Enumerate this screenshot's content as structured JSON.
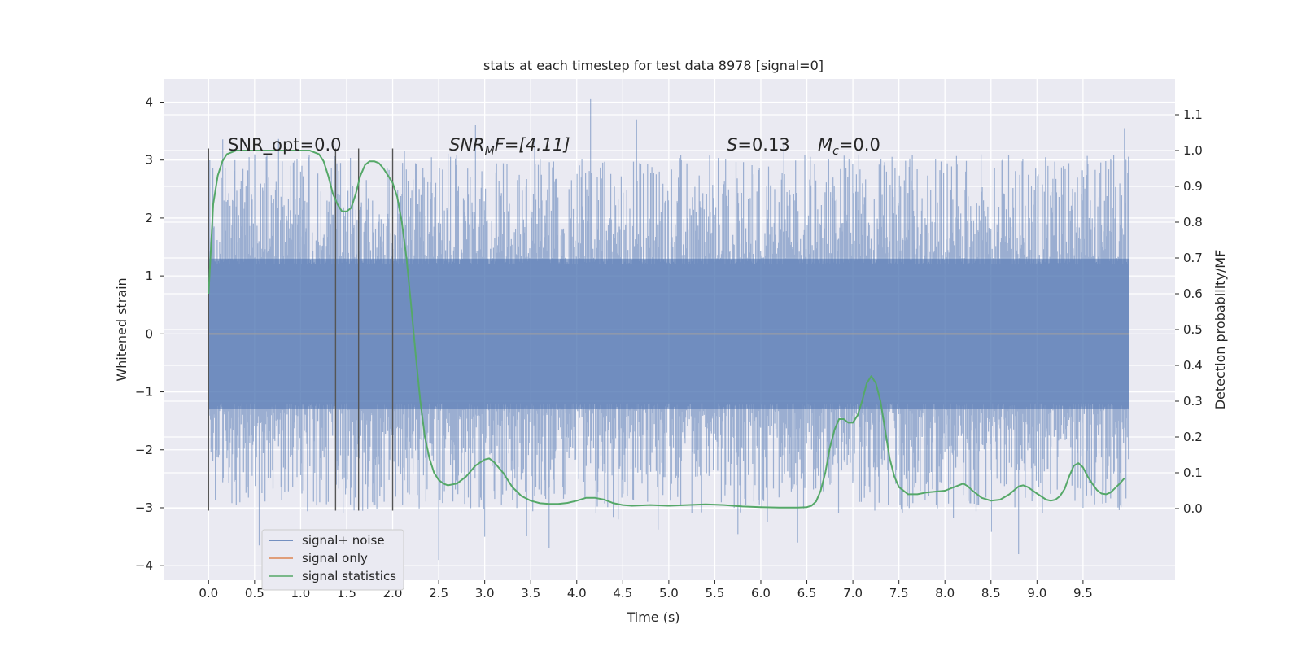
{
  "chart_data": {
    "type": "line",
    "title": "stats at each timestep for test data 8978 [signal=0]",
    "xlabel": "Time (s)",
    "ylabel": "Whitened strain",
    "ylabel_right": "Detection probability/MF",
    "xlim": [
      -0.48,
      10.5
    ],
    "ylim": [
      -4.25,
      4.4
    ],
    "ylim_right": [
      -0.2,
      1.2
    ],
    "x_ticks": [
      "0.0",
      "0.5",
      "1.0",
      "1.5",
      "2.0",
      "2.5",
      "3.0",
      "3.5",
      "4.0",
      "4.5",
      "5.0",
      "5.5",
      "6.0",
      "6.5",
      "7.0",
      "7.5",
      "8.0",
      "8.5",
      "9.0",
      "9.5"
    ],
    "y_ticks": [
      "4",
      "3",
      "2",
      "1",
      "0",
      "−1",
      "−2",
      "−3",
      "−4"
    ],
    "y_ticks_right": [
      "1.1",
      "1.0",
      "0.9",
      "0.8",
      "0.7",
      "0.6",
      "0.5",
      "0.4",
      "0.3",
      "0.2",
      "0.1",
      "0.0"
    ],
    "grid": true,
    "legend_position": "lower-left",
    "annotations": {
      "snr_opt": "SNR_opt=0.0",
      "snr_mf_italic": "SNR",
      "snr_mf_sub": "M",
      "snr_mf_rest": "F=[4.11]",
      "s_italic": "S",
      "s_rest": "=0.13",
      "mc_italic": "M",
      "mc_sub": "c",
      "mc_rest": "=0.0"
    },
    "vertical_markers": [
      0.0,
      1.38,
      1.63,
      2.0
    ],
    "noise_envelope": {
      "x_range": [
        0.0,
        10.0
      ],
      "dense_band": [
        -1.3,
        1.3
      ],
      "peaks_up": [
        [
          0.5,
          3.1
        ],
        [
          1.0,
          2.8
        ],
        [
          2.9,
          3.6
        ],
        [
          4.15,
          4.05
        ],
        [
          4.65,
          3.7
        ],
        [
          6.25,
          3.3
        ],
        [
          9.95,
          3.55
        ]
      ],
      "peaks_down": [
        [
          0.55,
          -3.65
        ],
        [
          2.5,
          -3.9
        ],
        [
          3.0,
          -3.5
        ],
        [
          3.7,
          -3.7
        ],
        [
          4.45,
          -3.2
        ],
        [
          6.4,
          -3.6
        ],
        [
          8.8,
          -3.8
        ],
        [
          9.5,
          -3.0
        ]
      ]
    },
    "series": [
      {
        "name": "signal+ noise",
        "color": "#4c72b0",
        "axis": "left",
        "style": "dense-noise"
      },
      {
        "name": "signal only",
        "color": "#dd8452",
        "axis": "left",
        "x": [
          0,
          10
        ],
        "y": [
          0,
          0
        ]
      },
      {
        "name": "signal statistics",
        "color": "#55a868",
        "axis": "right",
        "x": [
          0.0,
          0.05,
          0.1,
          0.15,
          0.2,
          0.3,
          0.5,
          0.7,
          0.9,
          1.0,
          1.1,
          1.2,
          1.25,
          1.3,
          1.35,
          1.4,
          1.45,
          1.5,
          1.55,
          1.6,
          1.65,
          1.7,
          1.75,
          1.8,
          1.85,
          1.9,
          1.95,
          2.0,
          2.05,
          2.1,
          2.15,
          2.2,
          2.25,
          2.3,
          2.35,
          2.4,
          2.45,
          2.5,
          2.55,
          2.6,
          2.7,
          2.8,
          2.9,
          3.0,
          3.05,
          3.1,
          3.2,
          3.3,
          3.4,
          3.5,
          3.6,
          3.7,
          3.8,
          3.9,
          4.0,
          4.1,
          4.2,
          4.3,
          4.4,
          4.5,
          4.6,
          4.8,
          5.0,
          5.2,
          5.4,
          5.6,
          5.8,
          6.0,
          6.2,
          6.4,
          6.5,
          6.55,
          6.6,
          6.65,
          6.7,
          6.75,
          6.8,
          6.85,
          6.9,
          6.95,
          7.0,
          7.05,
          7.1,
          7.15,
          7.2,
          7.25,
          7.3,
          7.35,
          7.4,
          7.45,
          7.5,
          7.6,
          7.7,
          7.8,
          8.0,
          8.1,
          8.2,
          8.25,
          8.3,
          8.4,
          8.5,
          8.6,
          8.7,
          8.8,
          8.85,
          8.9,
          9.0,
          9.1,
          9.15,
          9.2,
          9.25,
          9.3,
          9.35,
          9.4,
          9.45,
          9.5,
          9.55,
          9.6,
          9.65,
          9.7,
          9.75,
          9.8,
          9.9,
          9.95
        ],
        "y": [
          0.6,
          0.85,
          0.93,
          0.97,
          0.99,
          1.0,
          1.0,
          1.0,
          1.0,
          1.0,
          1.0,
          0.99,
          0.97,
          0.93,
          0.88,
          0.85,
          0.83,
          0.83,
          0.84,
          0.88,
          0.93,
          0.96,
          0.97,
          0.97,
          0.965,
          0.95,
          0.93,
          0.91,
          0.87,
          0.8,
          0.7,
          0.57,
          0.43,
          0.3,
          0.2,
          0.14,
          0.1,
          0.08,
          0.07,
          0.065,
          0.07,
          0.09,
          0.12,
          0.137,
          0.14,
          0.13,
          0.1,
          0.06,
          0.035,
          0.022,
          0.015,
          0.013,
          0.013,
          0.016,
          0.022,
          0.03,
          0.03,
          0.025,
          0.015,
          0.01,
          0.008,
          0.01,
          0.008,
          0.01,
          0.012,
          0.01,
          0.006,
          0.004,
          0.003,
          0.003,
          0.004,
          0.008,
          0.02,
          0.05,
          0.1,
          0.17,
          0.22,
          0.25,
          0.25,
          0.24,
          0.24,
          0.26,
          0.3,
          0.35,
          0.37,
          0.35,
          0.3,
          0.22,
          0.14,
          0.09,
          0.06,
          0.04,
          0.04,
          0.045,
          0.05,
          0.06,
          0.07,
          0.062,
          0.05,
          0.03,
          0.022,
          0.025,
          0.04,
          0.062,
          0.065,
          0.06,
          0.042,
          0.025,
          0.022,
          0.025,
          0.035,
          0.055,
          0.09,
          0.12,
          0.127,
          0.115,
          0.09,
          0.07,
          0.052,
          0.042,
          0.04,
          0.045,
          0.07,
          0.085
        ]
      }
    ]
  }
}
